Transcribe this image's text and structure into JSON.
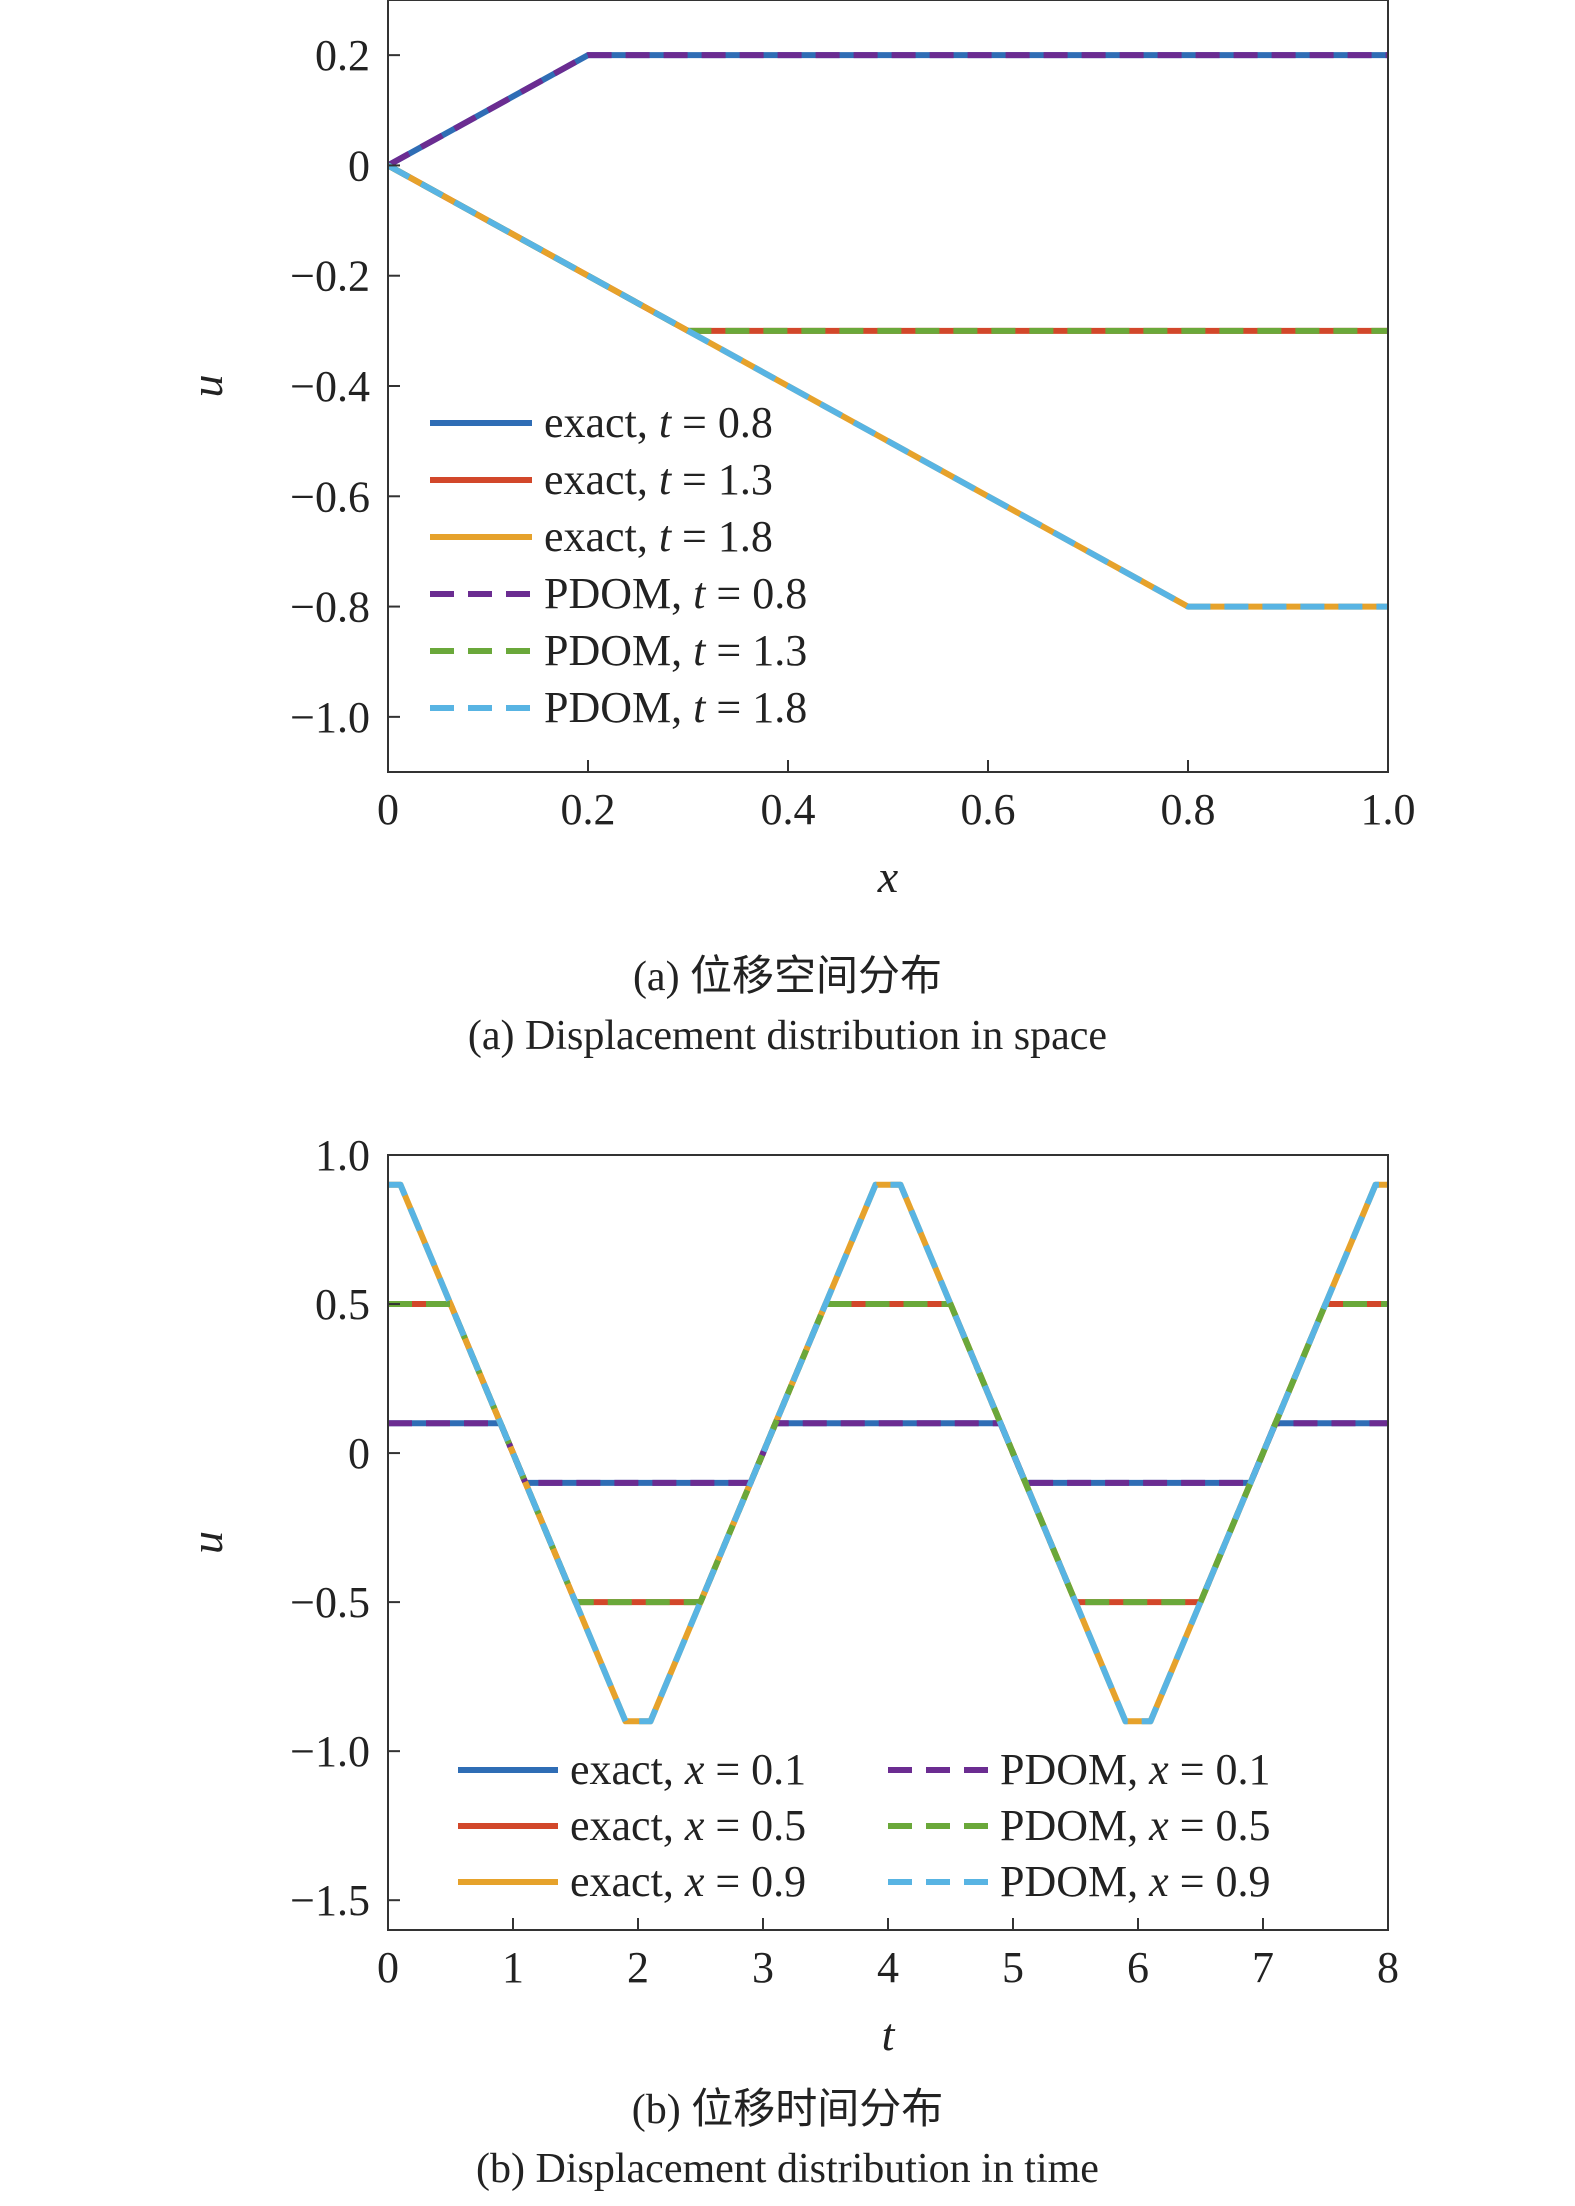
{
  "figure": {
    "caption_a_cn": "(a) 位移空间分布",
    "caption_a_en": "(a) Displacement distribution in space",
    "caption_b_cn": "(b) 位移时间分布",
    "caption_b_en": "(b) Displacement distribution in time"
  },
  "chart_data": [
    {
      "type": "line",
      "xlabel": "x",
      "ylabel": "u",
      "xlim": [
        0,
        1.0
      ],
      "ylim": [
        -1.1,
        0.3
      ],
      "xticks": [
        0,
        0.2,
        0.4,
        0.6,
        0.8,
        1.0
      ],
      "xtick_labels": [
        "0",
        "0.2",
        "0.4",
        "0.6",
        "0.8",
        "1.0"
      ],
      "yticks": [
        0.2,
        0,
        -0.2,
        -0.4,
        -0.6,
        -0.8,
        -1.0
      ],
      "ytick_labels": [
        "0.2",
        "0",
        "−0.2",
        "−0.4",
        "−0.6",
        "−0.8",
        "−1.0"
      ],
      "grid": false,
      "legend_position": "left, middle",
      "legend_columns": 1,
      "series": [
        {
          "name": "exact, t = 0.8",
          "legend_var": "t",
          "legend_val": "0.8",
          "legend_prefix": "exact, ",
          "style": "solid",
          "color": "#2f6db5",
          "x": [
            0,
            0.2,
            1.0
          ],
          "y": [
            0,
            0.2,
            0.2
          ]
        },
        {
          "name": "exact, t = 1.3",
          "legend_var": "t",
          "legend_val": "1.3",
          "legend_prefix": "exact, ",
          "style": "solid",
          "color": "#d2472a",
          "x": [
            0,
            0.3,
            1.0
          ],
          "y": [
            0,
            -0.3,
            -0.3
          ]
        },
        {
          "name": "exact, t = 1.8",
          "legend_var": "t",
          "legend_val": "1.8",
          "legend_prefix": "exact, ",
          "style": "solid",
          "color": "#e6a22b",
          "x": [
            0,
            0.8,
            1.0
          ],
          "y": [
            0,
            -0.8,
            -0.8
          ]
        },
        {
          "name": "PDOM, t = 0.8",
          "legend_var": "t",
          "legend_val": "0.8",
          "legend_prefix": "PDOM, ",
          "style": "dashed",
          "color": "#6b2c91",
          "x": [
            0,
            0.2,
            1.0
          ],
          "y": [
            0,
            0.2,
            0.2
          ]
        },
        {
          "name": "PDOM, t = 1.3",
          "legend_var": "t",
          "legend_val": "1.3",
          "legend_prefix": "PDOM, ",
          "style": "dashed",
          "color": "#6aa83a",
          "x": [
            0,
            0.3,
            1.0
          ],
          "y": [
            0,
            -0.3,
            -0.3
          ]
        },
        {
          "name": "PDOM, t = 1.8",
          "legend_var": "t",
          "legend_val": "1.8",
          "legend_prefix": "PDOM, ",
          "style": "dashed",
          "color": "#58b4e3",
          "x": [
            0,
            0.8,
            1.0
          ],
          "y": [
            0,
            -0.8,
            -0.8
          ]
        }
      ]
    },
    {
      "type": "line",
      "xlabel": "t",
      "ylabel": "u",
      "xlim": [
        0,
        8
      ],
      "ylim": [
        -1.6,
        1.0
      ],
      "xticks": [
        0,
        1,
        2,
        3,
        4,
        5,
        6,
        7,
        8
      ],
      "xtick_labels": [
        "0",
        "1",
        "2",
        "3",
        "4",
        "5",
        "6",
        "7",
        "8"
      ],
      "yticks": [
        1.0,
        0.5,
        0,
        -0.5,
        -1.0,
        -1.5
      ],
      "ytick_labels": [
        "1.0",
        "0.5",
        "0",
        "−0.5",
        "−1.0",
        "−1.5"
      ],
      "grid": false,
      "legend_position": "bottom",
      "legend_columns": 2,
      "series": [
        {
          "name": "exact, x = 0.1",
          "legend_var": "x",
          "legend_val": "0.1",
          "legend_prefix": "exact, ",
          "style": "solid",
          "color": "#2f6db5",
          "x": [
            0,
            0.9,
            1.1,
            2.9,
            3.1,
            4.9,
            5.1,
            6.9,
            7.1,
            8
          ],
          "y": [
            0.1,
            0.1,
            -0.1,
            -0.1,
            0.1,
            0.1,
            -0.1,
            -0.1,
            0.1,
            0.1
          ]
        },
        {
          "name": "exact, x = 0.5",
          "legend_var": "x",
          "legend_val": "0.5",
          "legend_prefix": "exact, ",
          "style": "solid",
          "color": "#d2472a",
          "x": [
            0,
            0.5,
            1.5,
            2.5,
            3.5,
            4.5,
            5.5,
            6.5,
            7.5,
            8
          ],
          "y": [
            0.5,
            0.5,
            -0.5,
            -0.5,
            0.5,
            0.5,
            -0.5,
            -0.5,
            0.5,
            0.5
          ]
        },
        {
          "name": "exact, x = 0.9",
          "legend_var": "x",
          "legend_val": "0.9",
          "legend_prefix": "exact, ",
          "style": "solid",
          "color": "#e6a22b",
          "x": [
            0,
            0.1,
            1.9,
            2.1,
            3.9,
            4.1,
            5.9,
            6.1,
            7.9,
            8
          ],
          "y": [
            0.9,
            0.9,
            -0.9,
            -0.9,
            0.9,
            0.9,
            -0.9,
            -0.9,
            0.9,
            0.9
          ]
        },
        {
          "name": "PDOM, x = 0.1",
          "legend_var": "x",
          "legend_val": "0.1",
          "legend_prefix": "PDOM, ",
          "style": "dashed",
          "color": "#6b2c91",
          "x": [
            0,
            0.9,
            1.1,
            2.9,
            3.1,
            4.9,
            5.1,
            6.9,
            7.1,
            8
          ],
          "y": [
            0.1,
            0.1,
            -0.1,
            -0.1,
            0.1,
            0.1,
            -0.1,
            -0.1,
            0.1,
            0.1
          ]
        },
        {
          "name": "PDOM, x = 0.5",
          "legend_var": "x",
          "legend_val": "0.5",
          "legend_prefix": "PDOM, ",
          "style": "dashed",
          "color": "#6aa83a",
          "x": [
            0,
            0.5,
            1.5,
            2.5,
            3.5,
            4.5,
            5.5,
            6.5,
            7.5,
            8
          ],
          "y": [
            0.5,
            0.5,
            -0.5,
            -0.5,
            0.5,
            0.5,
            -0.5,
            -0.5,
            0.5,
            0.5
          ]
        },
        {
          "name": "PDOM, x = 0.9",
          "legend_var": "x",
          "legend_val": "0.9",
          "legend_prefix": "PDOM, ",
          "style": "dashed",
          "color": "#58b4e3",
          "x": [
            0,
            0.1,
            1.9,
            2.1,
            3.9,
            4.1,
            5.9,
            6.1,
            7.9,
            8
          ],
          "y": [
            0.9,
            0.9,
            -0.9,
            -0.9,
            0.9,
            0.9,
            -0.9,
            -0.9,
            0.9,
            0.9
          ]
        }
      ]
    }
  ]
}
